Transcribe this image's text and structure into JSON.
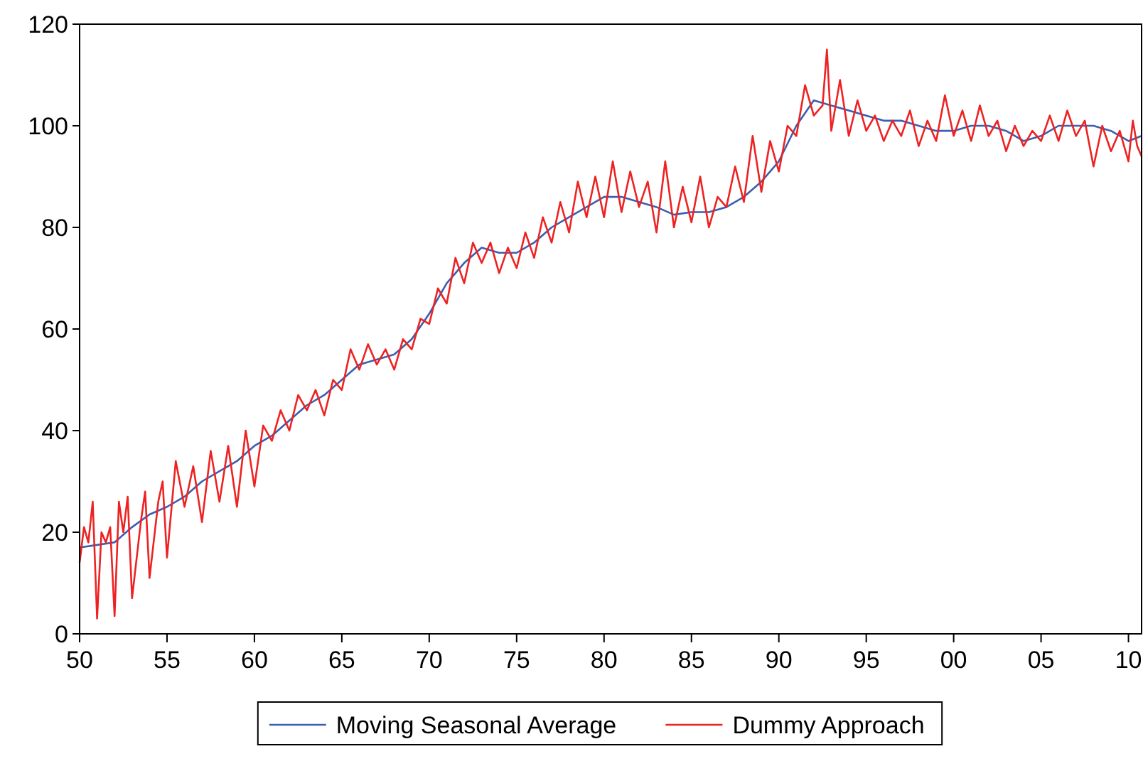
{
  "chart_data": {
    "type": "line",
    "xlim": [
      1950,
      2010.75
    ],
    "xticks": [
      {
        "value": 1950,
        "label": "50"
      },
      {
        "value": 1955,
        "label": "55"
      },
      {
        "value": 1960,
        "label": "60"
      },
      {
        "value": 1965,
        "label": "65"
      },
      {
        "value": 1970,
        "label": "70"
      },
      {
        "value": 1975,
        "label": "75"
      },
      {
        "value": 1980,
        "label": "80"
      },
      {
        "value": 1985,
        "label": "85"
      },
      {
        "value": 1990,
        "label": "90"
      },
      {
        "value": 1995,
        "label": "95"
      },
      {
        "value": 2000,
        "label": "00"
      },
      {
        "value": 2005,
        "label": "05"
      },
      {
        "value": 2010,
        "label": "10"
      }
    ],
    "ylim": [
      0,
      120
    ],
    "yticks": [
      0,
      20,
      40,
      60,
      80,
      100,
      120
    ],
    "grid": false,
    "legend": "bottom",
    "line_style": "solid",
    "marker": "none",
    "series": [
      {
        "name": "Moving Seasonal Average",
        "color": "#3a5fb0",
        "x": [
          1950,
          1951,
          1952,
          1953,
          1954,
          1955,
          1956,
          1957,
          1958,
          1959,
          1960,
          1961,
          1962,
          1963,
          1964,
          1965,
          1966,
          1967,
          1968,
          1969,
          1970,
          1971,
          1972,
          1973,
          1974,
          1975,
          1976,
          1977,
          1978,
          1979,
          1980,
          1981,
          1982,
          1983,
          1984,
          1985,
          1986,
          1987,
          1988,
          1989,
          1990,
          1991,
          1992,
          1993,
          1994,
          1995,
          1996,
          1997,
          1998,
          1999,
          2000,
          2001,
          2002,
          2003,
          2004,
          2005,
          2006,
          2007,
          2008,
          2009,
          2010,
          2010.75
        ],
        "values": [
          17,
          17.5,
          18,
          21,
          23.5,
          25,
          27,
          30,
          32,
          34,
          37,
          39,
          42,
          45,
          47,
          50,
          53,
          54,
          55,
          58,
          63,
          69,
          73,
          76,
          75,
          75,
          77,
          80,
          82,
          84,
          86,
          86,
          85,
          84,
          82.5,
          83,
          83,
          84,
          86,
          89,
          93,
          100,
          105,
          104,
          103,
          102,
          101,
          101,
          100,
          99,
          99,
          100,
          100,
          99,
          97,
          98,
          100,
          100,
          100,
          99,
          97,
          98
        ]
      },
      {
        "name": "Dummy Approach",
        "color": "#ee2222",
        "x": [
          1950,
          1950.25,
          1950.5,
          1950.75,
          1951,
          1951.25,
          1951.5,
          1951.75,
          1952,
          1952.25,
          1952.5,
          1952.75,
          1953,
          1953.5,
          1953.75,
          1954,
          1954.5,
          1954.75,
          1955,
          1955.5,
          1956,
          1956.5,
          1957,
          1957.5,
          1958,
          1958.5,
          1959,
          1959.5,
          1960,
          1960.5,
          1961,
          1961.5,
          1962,
          1962.5,
          1963,
          1963.5,
          1964,
          1964.5,
          1965,
          1965.5,
          1966,
          1966.5,
          1967,
          1967.5,
          1968,
          1968.5,
          1969,
          1969.5,
          1970,
          1970.5,
          1971,
          1971.5,
          1972,
          1972.5,
          1973,
          1973.5,
          1974,
          1974.5,
          1975,
          1975.5,
          1976,
          1976.5,
          1977,
          1977.5,
          1978,
          1978.5,
          1979,
          1979.5,
          1980,
          1980.5,
          1981,
          1981.5,
          1982,
          1982.5,
          1983,
          1983.5,
          1984,
          1984.5,
          1985,
          1985.5,
          1986,
          1986.5,
          1987,
          1987.5,
          1988,
          1988.5,
          1989,
          1989.5,
          1990,
          1990.5,
          1991,
          1991.5,
          1992,
          1992.5,
          1992.75,
          1993,
          1993.5,
          1994,
          1994.5,
          1995,
          1995.5,
          1996,
          1996.5,
          1997,
          1997.5,
          1998,
          1998.5,
          1999,
          1999.5,
          2000,
          2000.5,
          2001,
          2001.5,
          2002,
          2002.5,
          2003,
          2003.5,
          2004,
          2004.5,
          2005,
          2005.5,
          2006,
          2006.5,
          2007,
          2007.5,
          2008,
          2008.5,
          2009,
          2009.5,
          2010,
          2010.25,
          2010.5,
          2010.75
        ],
        "values": [
          14,
          21,
          18,
          26,
          3,
          20,
          18,
          21,
          3.5,
          26,
          20,
          27,
          7,
          22,
          28,
          11,
          26,
          30,
          15,
          34,
          25,
          33,
          22,
          36,
          26,
          37,
          25,
          40,
          29,
          41,
          38,
          44,
          40,
          47,
          44,
          48,
          43,
          50,
          48,
          56,
          52,
          57,
          53,
          56,
          52,
          58,
          56,
          62,
          61,
          68,
          65,
          74,
          69,
          77,
          73,
          77,
          71,
          76,
          72,
          79,
          74,
          82,
          77,
          85,
          79,
          89,
          82,
          90,
          82,
          93,
          83,
          91,
          84,
          89,
          79,
          93,
          80,
          88,
          81,
          90,
          80,
          86,
          84,
          92,
          85,
          98,
          87,
          97,
          91,
          100,
          98,
          108,
          102,
          104,
          115,
          99,
          109,
          98,
          105,
          99,
          102,
          97,
          101,
          98,
          103,
          96,
          101,
          97,
          106,
          98,
          103,
          97,
          104,
          98,
          101,
          95,
          100,
          96,
          99,
          97,
          102,
          97,
          103,
          98,
          101,
          92,
          100,
          95,
          99,
          93,
          101,
          96,
          94
        ]
      }
    ]
  }
}
